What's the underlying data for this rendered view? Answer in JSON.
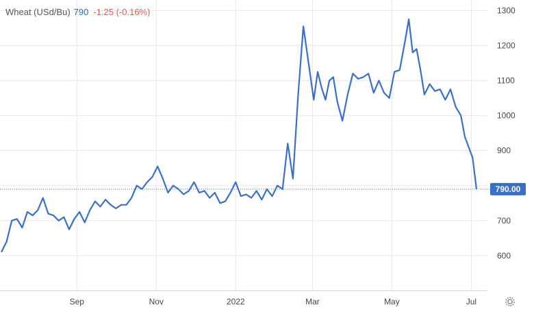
{
  "legend": {
    "name": "Wheat (USd/Bu)",
    "price": "790",
    "change": "-1.25 (-0.16%)"
  },
  "colors": {
    "line": "#3a6fc8",
    "last_label_bg": "#3a6fc8",
    "change": "#e4574f",
    "grid": "#e8e8e8"
  },
  "icons": {
    "settings": "gear-icon"
  },
  "chart_data": {
    "type": "line",
    "title": "",
    "xlabel": "",
    "ylabel": "",
    "ylim": [
      500,
      1330
    ],
    "y_ticks": [
      600,
      700,
      800,
      900,
      1000,
      1100,
      1200,
      1300
    ],
    "y_tick_labels": [
      "600",
      "700",
      "",
      "900",
      "1000",
      "1100",
      "1200",
      "1300"
    ],
    "x_ticks": [
      "Sep",
      "Nov",
      "2022",
      "Mar",
      "May",
      "Jul"
    ],
    "x_tick_dates": [
      "2021-09-01",
      "2021-11-01",
      "2022-01-01",
      "2022-03-01",
      "2022-05-01",
      "2022-07-01"
    ],
    "last_value_label": "790.00",
    "grid": true,
    "series": [
      {
        "name": "",
        "x": [
          "2021-07-05",
          "2021-07-09",
          "2021-07-13",
          "2021-07-17",
          "2021-07-21",
          "2021-07-25",
          "2021-07-29",
          "2021-08-02",
          "2021-08-06",
          "2021-08-10",
          "2021-08-14",
          "2021-08-18",
          "2021-08-22",
          "2021-08-26",
          "2021-08-30",
          "2021-09-03",
          "2021-09-07",
          "2021-09-11",
          "2021-09-15",
          "2021-09-19",
          "2021-09-23",
          "2021-09-27",
          "2021-10-01",
          "2021-10-05",
          "2021-10-09",
          "2021-10-13",
          "2021-10-17",
          "2021-10-21",
          "2021-10-25",
          "2021-10-29",
          "2021-11-02",
          "2021-11-06",
          "2021-11-10",
          "2021-11-14",
          "2021-11-18",
          "2021-11-22",
          "2021-11-26",
          "2021-11-30",
          "2021-12-04",
          "2021-12-08",
          "2021-12-12",
          "2021-12-16",
          "2021-12-20",
          "2021-12-24",
          "2021-12-28",
          "2022-01-01",
          "2022-01-05",
          "2022-01-09",
          "2022-01-13",
          "2022-01-17",
          "2022-01-21",
          "2022-01-25",
          "2022-01-29",
          "2022-02-02",
          "2022-02-06",
          "2022-02-10",
          "2022-02-14",
          "2022-02-18",
          "2022-02-22",
          "2022-02-26",
          "2022-03-02",
          "2022-03-05",
          "2022-03-08",
          "2022-03-11",
          "2022-03-14",
          "2022-03-17",
          "2022-03-20",
          "2022-03-24",
          "2022-03-28",
          "2022-04-01",
          "2022-04-05",
          "2022-04-09",
          "2022-04-13",
          "2022-04-17",
          "2022-04-21",
          "2022-04-25",
          "2022-04-29",
          "2022-05-03",
          "2022-05-07",
          "2022-05-11",
          "2022-05-14",
          "2022-05-17",
          "2022-05-20",
          "2022-05-23",
          "2022-05-26",
          "2022-05-30",
          "2022-06-03",
          "2022-06-07",
          "2022-06-11",
          "2022-06-15",
          "2022-06-19",
          "2022-06-23",
          "2022-06-26",
          "2022-06-29",
          "2022-07-02",
          "2022-07-05"
        ],
        "values": [
          610,
          640,
          700,
          705,
          680,
          725,
          715,
          730,
          765,
          720,
          715,
          700,
          710,
          675,
          705,
          725,
          695,
          730,
          755,
          740,
          760,
          745,
          735,
          745,
          745,
          765,
          800,
          790,
          810,
          825,
          855,
          820,
          780,
          800,
          790,
          775,
          785,
          810,
          780,
          785,
          765,
          780,
          750,
          755,
          780,
          810,
          770,
          775,
          765,
          785,
          760,
          790,
          770,
          800,
          790,
          920,
          820,
          1060,
          1255,
          1150,
          1045,
          1125,
          1080,
          1045,
          1100,
          1110,
          1040,
          985,
          1060,
          1120,
          1105,
          1110,
          1120,
          1065,
          1100,
          1065,
          1050,
          1125,
          1130,
          1210,
          1275,
          1180,
          1190,
          1130,
          1060,
          1090,
          1070,
          1075,
          1045,
          1075,
          1025,
          1000,
          940,
          910,
          880,
          790
        ]
      }
    ]
  }
}
